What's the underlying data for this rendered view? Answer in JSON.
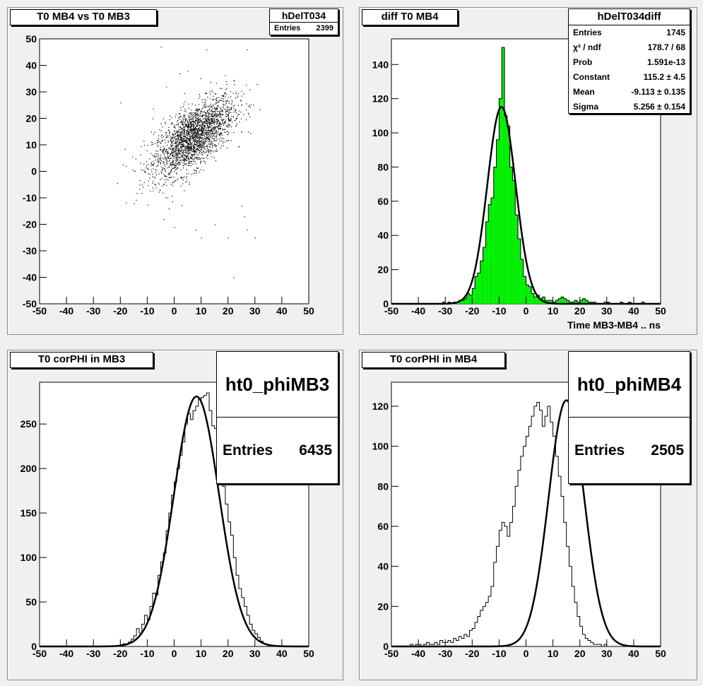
{
  "colors": {
    "frame_bg": "#f0f0f0",
    "plot_bg": "#ffffff",
    "fill_green": "#00ee00",
    "line": "#000000"
  },
  "chart_data": [
    {
      "type": "scatter",
      "title": "T0 MB4 vs T0 MB3",
      "stats": {
        "name": "hDelT034",
        "rows": [
          {
            "label": "Entries",
            "value": "2399"
          }
        ]
      },
      "xlim": [
        -50,
        50
      ],
      "ylim": [
        -50,
        50
      ],
      "xticks": [
        -50,
        -40,
        -30,
        -20,
        -10,
        0,
        10,
        20,
        30,
        40,
        50
      ],
      "yticks": [
        -50,
        -40,
        -30,
        -20,
        -10,
        0,
        10,
        20,
        30,
        40,
        50
      ],
      "xlabel": "",
      "ylabel": "",
      "cluster": {
        "mean_x": 7,
        "mean_y": 13,
        "sigma_x": 7.5,
        "sigma_y": 7.5,
        "correlation": 0.65
      },
      "outliers": [
        [
          -20,
          26
        ],
        [
          -18,
          2
        ],
        [
          -15,
          -12
        ],
        [
          -12,
          -5
        ],
        [
          -10,
          10
        ],
        [
          -5,
          47
        ],
        [
          -8,
          20
        ],
        [
          -4,
          -18
        ],
        [
          0,
          -21
        ],
        [
          2,
          37
        ],
        [
          5,
          38
        ],
        [
          10,
          -25
        ],
        [
          12,
          46
        ],
        [
          20,
          -25
        ],
        [
          22,
          24
        ],
        [
          25,
          -13
        ],
        [
          26,
          -17
        ],
        [
          27,
          46
        ],
        [
          27,
          -22
        ],
        [
          28,
          31
        ],
        [
          22,
          -40
        ],
        [
          -3,
          32
        ],
        [
          30,
          -25
        ],
        [
          15,
          -20
        ],
        [
          -2,
          -14
        ],
        [
          8,
          -22
        ]
      ]
    },
    {
      "type": "bar",
      "title": "diff T0 MB4",
      "stats": {
        "name": "hDelT034diff",
        "rows": [
          {
            "label": "Entries",
            "value": "1745"
          },
          {
            "label": "χ² / ndf",
            "value": "178.7 / 68"
          },
          {
            "label": "Prob",
            "value": "1.591e-13"
          },
          {
            "label": "Constant",
            "value": "115.2 ± 4.5"
          },
          {
            "label": "Mean",
            "value": "-9.113 ± 0.135"
          },
          {
            "label": "Sigma",
            "value": "5.256 ± 0.154"
          }
        ]
      },
      "xlim": [
        -50,
        50
      ],
      "ylim": [
        0,
        155
      ],
      "xticks": [
        -50,
        -40,
        -30,
        -20,
        -10,
        0,
        10,
        20,
        30,
        40,
        50
      ],
      "yticks": [
        0,
        20,
        40,
        60,
        80,
        100,
        120,
        140
      ],
      "xlabel": "Time MB3-MB4  ..  ns",
      "ylabel": "",
      "bin_start": -50,
      "bin_width": 1,
      "values": [
        0,
        0,
        0,
        0,
        0,
        0,
        0,
        0,
        0,
        0,
        0,
        0,
        0,
        0,
        0,
        0,
        0,
        0,
        0,
        1,
        0,
        1,
        0,
        1,
        1,
        2,
        2,
        3,
        6,
        5,
        9,
        16,
        18,
        25,
        33,
        48,
        58,
        62,
        80,
        96,
        120,
        150,
        110,
        104,
        80,
        72,
        52,
        38,
        26,
        16,
        11,
        10,
        6,
        4,
        5,
        3,
        4,
        2,
        2,
        2,
        1,
        2,
        3,
        4,
        3,
        2,
        1,
        1,
        2,
        1,
        2,
        3,
        2,
        1,
        1,
        1,
        0,
        0,
        0,
        1,
        1,
        0,
        0,
        0,
        0,
        1,
        0,
        0,
        1,
        0,
        0,
        0,
        0,
        1,
        0,
        0,
        0,
        0,
        0,
        0
      ],
      "fit": {
        "constant": 115.2,
        "mean": -9.113,
        "sigma": 5.256
      }
    },
    {
      "type": "line",
      "title": "T0 corPHI in MB3",
      "stats": {
        "name": "ht0_phiMB3",
        "rows": [
          {
            "label": "Entries",
            "value": "6435"
          }
        ]
      },
      "xlim": [
        -50,
        50
      ],
      "ylim": [
        0,
        297
      ],
      "xticks": [
        -50,
        -40,
        -30,
        -20,
        -10,
        0,
        10,
        20,
        30,
        40,
        50
      ],
      "yticks": [
        0,
        50,
        100,
        150,
        200,
        250
      ],
      "xlabel": "",
      "ylabel": "",
      "bin_start": -50,
      "bin_width": 1,
      "values": [
        0,
        0,
        0,
        0,
        0,
        0,
        0,
        0,
        0,
        0,
        0,
        0,
        0,
        0,
        0,
        0,
        0,
        0,
        0,
        0,
        0,
        0,
        0,
        0,
        0,
        0,
        0,
        0,
        0,
        0,
        2,
        3,
        3,
        5,
        8,
        12,
        20,
        15,
        25,
        35,
        30,
        45,
        60,
        58,
        80,
        95,
        105,
        130,
        150,
        170,
        185,
        200,
        215,
        230,
        250,
        262,
        255,
        265,
        270,
        278,
        280,
        282,
        285,
        265,
        248,
        245,
        220,
        205,
        180,
        160,
        140,
        125,
        100,
        80,
        65,
        55,
        45,
        35,
        25,
        18,
        14,
        10,
        6,
        3,
        2,
        1,
        1,
        0,
        0,
        0,
        0,
        0,
        0,
        0,
        0,
        0,
        0,
        0,
        0,
        0
      ],
      "fit": {
        "constant": 281,
        "mean": 8.3,
        "sigma": 8.4
      }
    },
    {
      "type": "line",
      "title": "T0 corPHI in MB4",
      "stats": {
        "name": "ht0_phiMB4",
        "rows": [
          {
            "label": "Entries",
            "value": "2505"
          }
        ]
      },
      "xlim": [
        -50,
        50
      ],
      "ylim": [
        0,
        132
      ],
      "xticks": [
        -50,
        -40,
        -30,
        -20,
        -10,
        0,
        10,
        20,
        30,
        40,
        50
      ],
      "yticks": [
        0,
        20,
        40,
        60,
        80,
        100,
        120
      ],
      "xlabel": "",
      "ylabel": "",
      "bin_start": -50,
      "bin_width": 1,
      "values": [
        0,
        0,
        0,
        0,
        0,
        0,
        0,
        1,
        0,
        1,
        1,
        0,
        1,
        2,
        1,
        1,
        2,
        1,
        3,
        2,
        2,
        3,
        2,
        4,
        3,
        5,
        4,
        6,
        5,
        8,
        9,
        12,
        15,
        18,
        20,
        22,
        25,
        30,
        42,
        50,
        58,
        62,
        60,
        55,
        62,
        70,
        80,
        88,
        95,
        100,
        105,
        110,
        115,
        120,
        122,
        118,
        110,
        115,
        120,
        112,
        105,
        95,
        85,
        75,
        62,
        50,
        40,
        30,
        22,
        15,
        10,
        6,
        4,
        3,
        2,
        1,
        1,
        1,
        0,
        1,
        0,
        0,
        0,
        0,
        0,
        0,
        0,
        0,
        0,
        0,
        0,
        0,
        0,
        0,
        0,
        0,
        0,
        0,
        0,
        0
      ],
      "fit": {
        "constant": 123,
        "mean": 15,
        "sigma": 6.6
      }
    }
  ]
}
